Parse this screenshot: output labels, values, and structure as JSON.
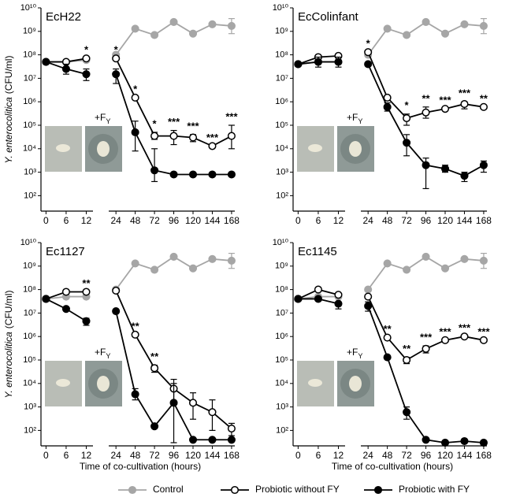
{
  "inset_label": {
    "text": "+F",
    "sub": "Y"
  },
  "chart_data": [
    {
      "type": "line",
      "title": "EcH22",
      "ylabel": {
        "species": "Y. enterocolitica",
        "unit": "(CFU/ml)"
      },
      "x": [
        0,
        6,
        12,
        24,
        48,
        72,
        96,
        120,
        144,
        168
      ],
      "xticks": [
        0,
        6,
        12,
        24,
        48,
        72,
        96,
        120,
        144,
        168
      ],
      "xlim": [
        [
          -1.5,
          14
        ],
        [
          15,
          172
        ]
      ],
      "log_y": true,
      "grid": false,
      "ylim": [
        22,
        10000000000
      ],
      "yticks": [
        {
          "value": 100,
          "label": "10²"
        },
        {
          "value": 1000,
          "label": "10³"
        },
        {
          "value": 10000,
          "label": "10⁴"
        },
        {
          "value": 100000,
          "label": "10⁵"
        },
        {
          "value": 1000000,
          "label": "10⁶"
        },
        {
          "value": 10000000,
          "label": "10⁷"
        },
        {
          "value": 100000000,
          "label": "10⁸"
        },
        {
          "value": 1000000000,
          "label": "10⁹"
        },
        {
          "value": 10000000000,
          "label": "10¹⁰"
        }
      ],
      "series": [
        {
          "name": "Control",
          "color": "#a6a6a6",
          "marker_fill": "#a6a6a6",
          "values": [
            50000000,
            50000000,
            60000000,
            100000000,
            1300000000,
            700000000,
            2500000000,
            800000000,
            2000000000,
            1700000000
          ],
          "err_lo": [
            null,
            null,
            null,
            null,
            null,
            null,
            null,
            null,
            null,
            800000000
          ],
          "err_hi": [
            null,
            null,
            null,
            null,
            null,
            null,
            null,
            null,
            null,
            3500000000
          ]
        },
        {
          "name": "Probiotic without FY",
          "color": "#000000",
          "marker_fill": "#ffffff",
          "values": [
            50000000,
            50000000,
            70000000,
            70000000,
            1500000,
            35000,
            35000,
            30000,
            13000,
            35000
          ],
          "err_lo": [
            null,
            null,
            null,
            null,
            null,
            25000,
            15000,
            20000,
            null,
            10000
          ],
          "err_hi": [
            null,
            null,
            null,
            null,
            null,
            50000,
            60000,
            40000,
            null,
            100000
          ]
        },
        {
          "name": "Probiotic with FY",
          "color": "#000000",
          "marker_fill": "#000000",
          "values": [
            50000000,
            25000000,
            15000000,
            15000000,
            50000,
            1200,
            800,
            800,
            800,
            800
          ],
          "err_lo": [
            null,
            15000000,
            8000000,
            6000000,
            8000,
            400,
            null,
            null,
            null,
            null
          ],
          "err_hi": [
            null,
            40000000,
            25000000,
            25000000,
            150000,
            10000,
            null,
            null,
            null,
            null
          ]
        }
      ],
      "significance": [
        null,
        null,
        "*",
        "*",
        "*",
        "*",
        "***",
        "***",
        "***",
        "***"
      ]
    },
    {
      "type": "line",
      "title": "EcColinfant",
      "x": [
        0,
        6,
        12,
        24,
        48,
        72,
        96,
        120,
        144,
        168
      ],
      "xticks": [
        0,
        6,
        12,
        24,
        48,
        72,
        96,
        120,
        144,
        168
      ],
      "xlim": [
        [
          -1.5,
          14
        ],
        [
          15,
          172
        ]
      ],
      "log_y": true,
      "grid": false,
      "ylim": [
        22,
        10000000000
      ],
      "yticks": [
        {
          "value": 100,
          "label": "10²"
        },
        {
          "value": 1000,
          "label": "10³"
        },
        {
          "value": 10000,
          "label": "10⁴"
        },
        {
          "value": 100000,
          "label": "10⁵"
        },
        {
          "value": 1000000,
          "label": "10⁶"
        },
        {
          "value": 10000000,
          "label": "10⁷"
        },
        {
          "value": 100000000,
          "label": "10⁸"
        },
        {
          "value": 1000000000,
          "label": "10⁹"
        },
        {
          "value": 10000000000,
          "label": "10¹⁰"
        }
      ],
      "series": [
        {
          "name": "Control",
          "color": "#a6a6a6",
          "marker_fill": "#a6a6a6",
          "values": [
            40000000,
            50000000,
            50000000,
            100000000,
            1300000000,
            700000000,
            2500000000,
            800000000,
            2000000000,
            1700000000
          ],
          "err_lo": [
            null,
            null,
            null,
            null,
            null,
            null,
            null,
            null,
            null,
            800000000
          ],
          "err_hi": [
            null,
            null,
            null,
            null,
            null,
            null,
            null,
            null,
            null,
            3500000000
          ]
        },
        {
          "name": "Probiotic without FY",
          "color": "#000000",
          "marker_fill": "#ffffff",
          "values": [
            40000000,
            80000000,
            90000000,
            130000000,
            1500000,
            200000,
            350000,
            500000,
            800000,
            600000
          ],
          "err_lo": [
            null,
            null,
            null,
            null,
            null,
            100000,
            200000,
            null,
            500000,
            null
          ],
          "err_hi": [
            null,
            null,
            null,
            null,
            null,
            300000,
            600000,
            null,
            1000000,
            null
          ]
        },
        {
          "name": "Probiotic with FY",
          "color": "#000000",
          "marker_fill": "#000000",
          "values": [
            40000000,
            50000000,
            50000000,
            40000000,
            600000,
            18000,
            2000,
            1400,
            700,
            2000
          ],
          "err_lo": [
            null,
            30000000,
            30000000,
            null,
            400000,
            5000,
            200,
            1000,
            400,
            1000
          ],
          "err_hi": [
            null,
            80000000,
            80000000,
            null,
            900000,
            40000,
            4000,
            2000,
            1000,
            3000
          ]
        }
      ],
      "significance": [
        null,
        null,
        null,
        "*",
        null,
        "*",
        "**",
        "***",
        "***",
        "**"
      ]
    },
    {
      "type": "line",
      "title": "Ec1127",
      "ylabel": {
        "species": "Y. enterocolitica",
        "unit": "(CFU/ml)"
      },
      "xlabel": "Time of co-cultivation (hours)",
      "x": [
        0,
        6,
        12,
        24,
        48,
        72,
        96,
        120,
        144,
        168
      ],
      "xticks": [
        0,
        6,
        12,
        24,
        48,
        72,
        96,
        120,
        144,
        168
      ],
      "xlim": [
        [
          -1.5,
          14
        ],
        [
          15,
          172
        ]
      ],
      "log_y": true,
      "grid": false,
      "ylim": [
        22,
        10000000000
      ],
      "yticks": [
        {
          "value": 100,
          "label": "10²"
        },
        {
          "value": 1000,
          "label": "10³"
        },
        {
          "value": 10000,
          "label": "10⁴"
        },
        {
          "value": 100000,
          "label": "10⁵"
        },
        {
          "value": 1000000,
          "label": "10⁶"
        },
        {
          "value": 10000000,
          "label": "10⁷"
        },
        {
          "value": 100000000,
          "label": "10⁸"
        },
        {
          "value": 1000000000,
          "label": "10⁹"
        },
        {
          "value": 10000000000,
          "label": "10¹⁰"
        }
      ],
      "series": [
        {
          "name": "Control",
          "color": "#a6a6a6",
          "marker_fill": "#a6a6a6",
          "values": [
            40000000,
            50000000,
            50000000,
            100000000,
            1300000000,
            700000000,
            2500000000,
            800000000,
            2000000000,
            1700000000
          ],
          "err_lo": [
            null,
            null,
            null,
            null,
            null,
            null,
            null,
            null,
            null,
            800000000
          ],
          "err_hi": [
            null,
            null,
            null,
            null,
            null,
            null,
            null,
            null,
            null,
            3500000000
          ]
        },
        {
          "name": "Probiotic without FY",
          "color": "#000000",
          "marker_fill": "#ffffff",
          "values": [
            40000000,
            80000000,
            80000000,
            90000000,
            1200000,
            45000,
            6000,
            1500,
            600,
            120
          ],
          "err_lo": [
            null,
            null,
            null,
            null,
            null,
            30000,
            1500,
            300,
            100,
            60
          ],
          "err_hi": [
            null,
            null,
            null,
            null,
            null,
            60000,
            15000,
            4000,
            2000,
            200
          ]
        },
        {
          "name": "Probiotic with FY",
          "color": "#000000",
          "marker_fill": "#000000",
          "values": [
            40000000,
            15000000,
            4500000,
            12000000,
            3500,
            150,
            1500,
            40,
            40,
            40
          ],
          "err_lo": [
            null,
            null,
            3000000,
            null,
            2000,
            null,
            30,
            null,
            null,
            null
          ],
          "err_hi": [
            null,
            null,
            6000000,
            null,
            6000,
            null,
            10000,
            null,
            null,
            null
          ]
        }
      ],
      "significance": [
        null,
        null,
        "**",
        null,
        "**",
        "**",
        null,
        null,
        null,
        null
      ]
    },
    {
      "type": "line",
      "title": "Ec1145",
      "xlabel": "Time of co-cultivation (hours)",
      "x": [
        0,
        6,
        12,
        24,
        48,
        72,
        96,
        120,
        144,
        168
      ],
      "xticks": [
        0,
        6,
        12,
        24,
        48,
        72,
        96,
        120,
        144,
        168
      ],
      "xlim": [
        [
          -1.5,
          14
        ],
        [
          15,
          172
        ]
      ],
      "log_y": true,
      "grid": false,
      "ylim": [
        22,
        10000000000
      ],
      "yticks": [
        {
          "value": 100,
          "label": "10²"
        },
        {
          "value": 1000,
          "label": "10³"
        },
        {
          "value": 10000,
          "label": "10⁴"
        },
        {
          "value": 100000,
          "label": "10⁵"
        },
        {
          "value": 1000000,
          "label": "10⁶"
        },
        {
          "value": 10000000,
          "label": "10⁷"
        },
        {
          "value": 100000000,
          "label": "10⁸"
        },
        {
          "value": 1000000000,
          "label": "10⁹"
        },
        {
          "value": 10000000000,
          "label": "10¹⁰"
        }
      ],
      "series": [
        {
          "name": "Control",
          "color": "#a6a6a6",
          "marker_fill": "#a6a6a6",
          "values": [
            40000000,
            50000000,
            50000000,
            100000000,
            1300000000,
            700000000,
            2500000000,
            800000000,
            2000000000,
            1700000000
          ],
          "err_lo": [
            null,
            null,
            null,
            null,
            null,
            null,
            null,
            null,
            null,
            800000000
          ],
          "err_hi": [
            null,
            null,
            null,
            null,
            null,
            null,
            null,
            null,
            null,
            3500000000
          ]
        },
        {
          "name": "Probiotic without FY",
          "color": "#000000",
          "marker_fill": "#ffffff",
          "values": [
            40000000,
            100000000,
            60000000,
            50000000,
            900000,
            100000,
            300000,
            700000,
            1000000,
            700000
          ],
          "err_lo": [
            null,
            null,
            null,
            null,
            null,
            70000,
            200000,
            null,
            null,
            null
          ],
          "err_hi": [
            null,
            null,
            null,
            null,
            null,
            130000,
            400000,
            null,
            null,
            null
          ]
        },
        {
          "name": "Probiotic with FY",
          "color": "#000000",
          "marker_fill": "#000000",
          "values": [
            40000000,
            40000000,
            25000000,
            20000000,
            130000,
            600,
            40,
            30,
            35,
            30
          ],
          "err_lo": [
            null,
            null,
            15000000,
            12000000,
            null,
            300,
            null,
            null,
            null,
            null
          ],
          "err_hi": [
            null,
            null,
            30000000,
            30000000,
            null,
            1000,
            null,
            null,
            null,
            null
          ]
        }
      ],
      "significance": [
        null,
        null,
        null,
        null,
        "**",
        "**",
        "***",
        "***",
        "***",
        "***"
      ]
    }
  ]
}
